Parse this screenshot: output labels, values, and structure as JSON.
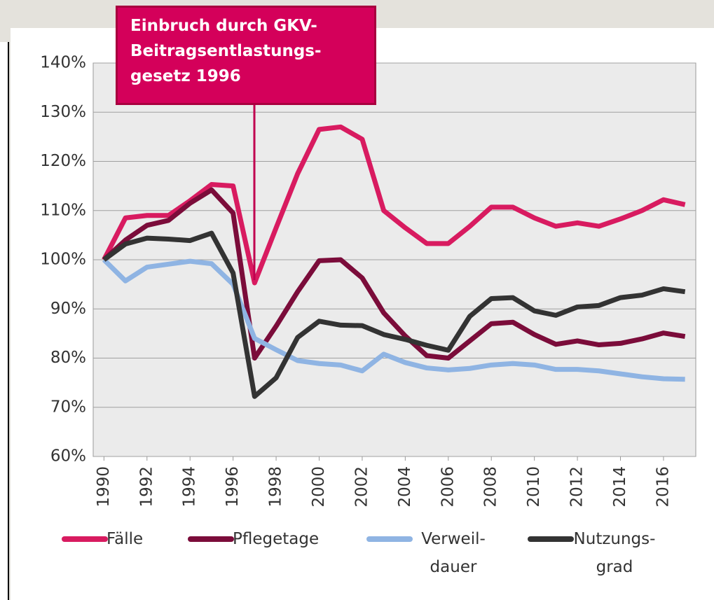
{
  "chart_data": {
    "type": "line",
    "annotation": "Einbruch durch GKV-Beitragsentlastungs-gesetz 1996",
    "x": [
      1990,
      1991,
      1992,
      1993,
      1994,
      1995,
      1996,
      1997,
      1998,
      1999,
      2000,
      2001,
      2002,
      2003,
      2004,
      2005,
      2006,
      2007,
      2008,
      2009,
      2010,
      2011,
      2012,
      2013,
      2014,
      2015,
      2016,
      2017
    ],
    "xlim": [
      1989.5,
      2017.5
    ],
    "xticks": [
      1990,
      1992,
      1994,
      1996,
      1998,
      2000,
      2002,
      2004,
      2006,
      2008,
      2010,
      2012,
      2014,
      2016
    ],
    "ylim": [
      60,
      140
    ],
    "yticks": [
      {
        "value": 60,
        "label": "60%"
      },
      {
        "value": 70,
        "label": "70%"
      },
      {
        "value": 80,
        "label": "80%"
      },
      {
        "value": 90,
        "label": "90%"
      },
      {
        "value": 100,
        "label": "100%"
      },
      {
        "value": 110,
        "label": "110%"
      },
      {
        "value": 120,
        "label": "120%"
      },
      {
        "value": 130,
        "label": "130%"
      },
      {
        "value": 140,
        "label": "140%"
      }
    ],
    "grid": true,
    "legend": "bottom",
    "series": [
      {
        "name": "Fälle",
        "color": "#d81b60",
        "values": [
          100,
          108.5,
          109,
          109,
          112,
          115.3,
          115,
          95.3,
          106.5,
          117.5,
          126.5,
          127,
          124.5,
          110,
          106.5,
          103.3,
          103.3,
          106.8,
          110.7,
          110.7,
          108.5,
          106.8,
          107.5,
          106.8,
          108.3,
          110,
          112.2,
          111.2
        ]
      },
      {
        "name": "Pflegetage",
        "color": "#7b0c3a",
        "values": [
          100,
          104,
          107,
          108,
          111.5,
          114.2,
          109.5,
          80,
          86.5,
          93.5,
          99.8,
          100,
          96.3,
          89.2,
          84.5,
          80.5,
          80,
          83.5,
          87,
          87.3,
          84.8,
          82.8,
          83.5,
          82.7,
          83,
          83.9,
          85.1,
          84.4
        ]
      },
      {
        "name": "Verweil-dauer",
        "color": "#8fb4e3",
        "values": [
          100,
          95.7,
          98.5,
          99.1,
          99.7,
          99.2,
          95,
          84,
          81.7,
          79.5,
          78.9,
          78.6,
          77.4,
          80.8,
          79.1,
          78,
          77.6,
          77.9,
          78.6,
          78.9,
          78.6,
          77.7,
          77.7,
          77.4,
          76.8,
          76.2,
          75.8,
          75.7
        ]
      },
      {
        "name": "Nutzungs-grad",
        "color": "#333333",
        "values": [
          100,
          103.2,
          104.4,
          104.2,
          103.9,
          105.4,
          97.3,
          72.2,
          76,
          84.2,
          87.5,
          86.7,
          86.6,
          84.8,
          83.8,
          82.6,
          81.6,
          88.5,
          92.1,
          92.3,
          89.6,
          88.7,
          90.4,
          90.7,
          92.3,
          92.8,
          94.1,
          93.5
        ]
      }
    ]
  }
}
